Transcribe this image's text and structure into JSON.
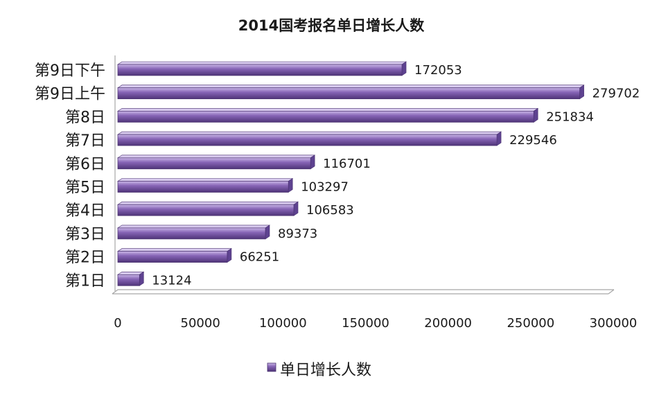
{
  "chart_data": {
    "type": "bar",
    "orientation": "horizontal",
    "title": "2014国考报名单日增长人数",
    "categories": [
      "第9日下午",
      "第9日上午",
      "第8日",
      "第7日",
      "第6日",
      "第5日",
      "第4日",
      "第3日",
      "第2日",
      "第1日"
    ],
    "series": [
      {
        "name": "单日增长人数",
        "values": [
          172053,
          279702,
          251834,
          229546,
          116701,
          103297,
          106583,
          89373,
          66251,
          13124
        ]
      }
    ],
    "xlim": [
      0,
      300000
    ],
    "xticks": [
      0,
      50000,
      100000,
      150000,
      200000,
      250000,
      300000
    ],
    "xtick_labels": [
      "0",
      "50000",
      "100000",
      "150000",
      "200000",
      "250000",
      "300000"
    ],
    "data_labels": true,
    "grid": false,
    "legend": "bottom",
    "colors": {
      "bar_light": "#c9b6e6",
      "bar": "#8765b6",
      "bar_dark": "#4f3478",
      "bar_top": "#d8caee",
      "bar_end": "#5e4290",
      "bar_stroke": "#4a3270",
      "axis": "#a6a6a6",
      "text": "#1a1a1a"
    }
  }
}
